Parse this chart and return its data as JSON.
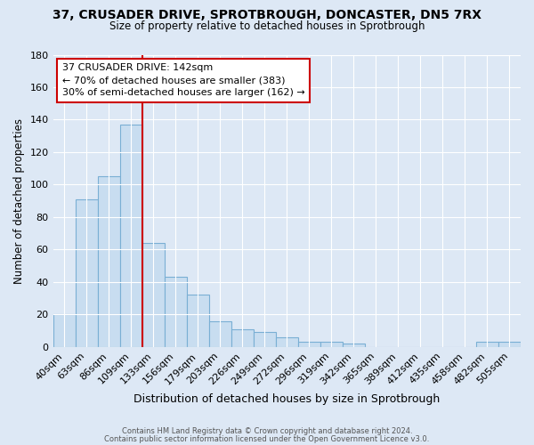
{
  "title_line1": "37, CRUSADER DRIVE, SPROTBROUGH, DONCASTER, DN5 7RX",
  "title_line2": "Size of property relative to detached houses in Sprotbrough",
  "xlabel": "Distribution of detached houses by size in Sprotbrough",
  "ylabel": "Number of detached properties",
  "bar_labels": [
    "40sqm",
    "63sqm",
    "86sqm",
    "109sqm",
    "133sqm",
    "156sqm",
    "179sqm",
    "203sqm",
    "226sqm",
    "249sqm",
    "272sqm",
    "296sqm",
    "319sqm",
    "342sqm",
    "365sqm",
    "389sqm",
    "412sqm",
    "435sqm",
    "458sqm",
    "482sqm",
    "505sqm"
  ],
  "bar_values": [
    20,
    91,
    105,
    137,
    64,
    43,
    32,
    16,
    11,
    9,
    6,
    3,
    3,
    2,
    0,
    0,
    0,
    0,
    0,
    3,
    3
  ],
  "bar_color": "#c8ddf0",
  "bar_edge_color": "#7aafd4",
  "vline_color": "#cc0000",
  "ylim": [
    0,
    180
  ],
  "yticks": [
    0,
    20,
    40,
    60,
    80,
    100,
    120,
    140,
    160,
    180
  ],
  "annotation_title": "37 CRUSADER DRIVE: 142sqm",
  "annotation_line1": "← 70% of detached houses are smaller (383)",
  "annotation_line2": "30% of semi-detached houses are larger (162) →",
  "annotation_box_color": "#ffffff",
  "annotation_box_edge": "#cc0000",
  "footer_line1": "Contains HM Land Registry data © Crown copyright and database right 2024.",
  "footer_line2": "Contains public sector information licensed under the Open Government Licence v3.0.",
  "background_color": "#dde8f5",
  "plot_bg_color": "#dde8f5",
  "grid_color": "#ffffff"
}
